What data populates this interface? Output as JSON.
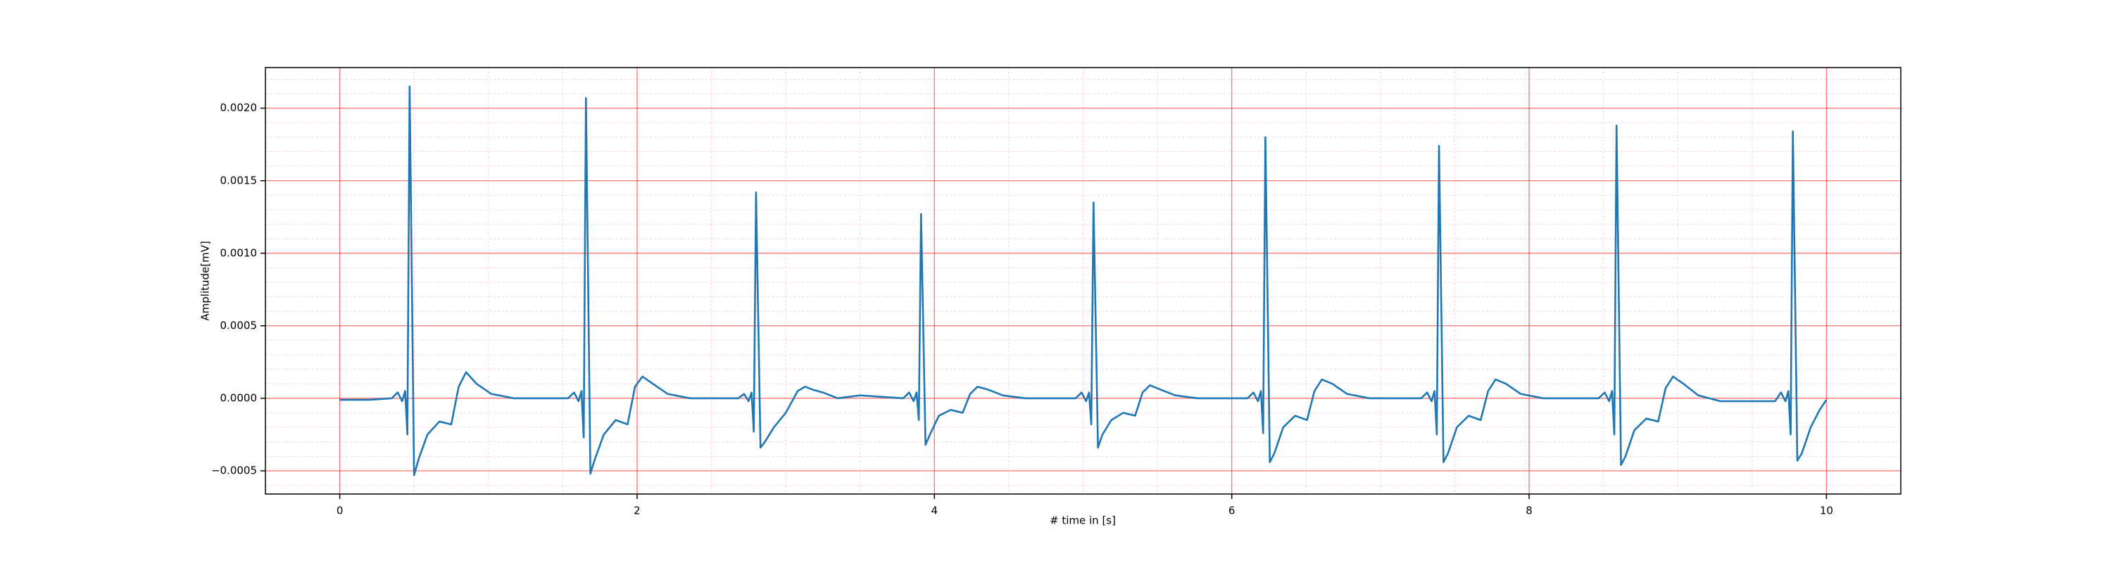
{
  "chart_data": {
    "type": "line",
    "xlabel": "# time in [s]",
    "ylabel": "Amplitude[mV]",
    "color": "#1f77b4",
    "x": [
      0,
      0.2,
      0.35,
      0.39,
      0.42,
      0.44,
      0.455,
      0.47,
      0.5,
      0.53,
      0.59,
      0.67,
      0.75,
      0.8,
      0.85,
      0.92,
      1.02,
      1.17,
      1.536,
      1.576,
      1.606,
      1.626,
      1.641,
      1.656,
      1.686,
      1.716,
      1.776,
      1.856,
      1.936,
      1.986,
      2.036,
      2.106,
      2.206,
      2.356,
      2.68,
      2.72,
      2.75,
      2.77,
      2.785,
      2.8,
      2.83,
      2.86,
      2.92,
      3.0,
      3.08,
      3.13,
      3.18,
      3.25,
      3.35,
      3.5,
      3.79,
      3.83,
      3.86,
      3.88,
      3.895,
      3.91,
      3.94,
      3.97,
      4.03,
      4.11,
      4.19,
      4.24,
      4.29,
      4.36,
      4.46,
      4.61,
      4.95,
      4.99,
      5.02,
      5.04,
      5.055,
      5.07,
      5.1,
      5.13,
      5.19,
      5.27,
      5.35,
      5.4,
      5.45,
      5.52,
      5.62,
      5.77,
      6.106,
      6.146,
      6.176,
      6.196,
      6.211,
      6.226,
      6.256,
      6.286,
      6.346,
      6.426,
      6.506,
      6.556,
      6.606,
      6.676,
      6.776,
      6.926,
      7.274,
      7.314,
      7.344,
      7.364,
      7.379,
      7.394,
      7.424,
      7.454,
      7.514,
      7.594,
      7.674,
      7.724,
      7.774,
      7.844,
      7.944,
      8.094,
      8.468,
      8.508,
      8.538,
      8.558,
      8.573,
      8.588,
      8.618,
      8.648,
      8.708,
      8.788,
      8.868,
      8.918,
      8.968,
      9.038,
      9.138,
      9.288,
      9.654,
      9.694,
      9.724,
      9.744,
      9.759,
      9.774,
      9.804,
      9.834,
      9.894,
      9.954,
      10.0
    ],
    "values": [
      -1e-05,
      -1e-05,
      0,
      4e-05,
      -2e-05,
      5e-05,
      -0.00025,
      0.00215,
      -0.00053,
      -0.00042,
      -0.00025,
      -0.00016,
      -0.00018,
      8e-05,
      0.00018,
      0.0001,
      3e-05,
      0,
      0,
      4e-05,
      -2e-05,
      5e-05,
      -0.00027,
      0.00207,
      -0.00052,
      -0.00042,
      -0.00025,
      -0.00015,
      -0.00018,
      8e-05,
      0.00015,
      0.0001,
      3e-05,
      0,
      0,
      3e-05,
      -2e-05,
      4e-05,
      -0.00023,
      0.00142,
      -0.00034,
      -0.0003,
      -0.0002,
      -0.0001,
      5e-05,
      8e-05,
      6e-05,
      4e-05,
      0,
      2e-05,
      0,
      4e-05,
      -2e-05,
      4e-05,
      -0.00015,
      0.00127,
      -0.00032,
      -0.00025,
      -0.00012,
      -8e-05,
      -0.0001,
      3e-05,
      8e-05,
      6e-05,
      2e-05,
      0,
      0,
      4e-05,
      -2e-05,
      4e-05,
      -0.00018,
      0.00135,
      -0.00034,
      -0.00025,
      -0.00015,
      -0.0001,
      -0.00012,
      4e-05,
      9e-05,
      6e-05,
      2e-05,
      0,
      0,
      4e-05,
      -2e-05,
      5e-05,
      -0.00024,
      0.0018,
      -0.00044,
      -0.00038,
      -0.0002,
      -0.00012,
      -0.00015,
      5e-05,
      0.00013,
      0.0001,
      3e-05,
      0,
      0,
      4e-05,
      -2e-05,
      5e-05,
      -0.00025,
      0.00174,
      -0.00044,
      -0.00038,
      -0.0002,
      -0.00012,
      -0.00015,
      5e-05,
      0.00013,
      0.0001,
      3e-05,
      0,
      0,
      4e-05,
      -2e-05,
      5e-05,
      -0.00025,
      0.00188,
      -0.00046,
      -0.0004,
      -0.00022,
      -0.00014,
      -0.00016,
      7e-05,
      0.00015,
      0.0001,
      2e-05,
      -2e-05,
      -2e-05,
      4e-05,
      -2e-05,
      5e-05,
      -0.00025,
      0.00184,
      -0.00043,
      -0.00038,
      -0.0002,
      -8e-05,
      -1e-05
    ],
    "xlim": [
      -0.5,
      10.5
    ],
    "xticks": [
      0,
      2,
      4,
      6,
      8,
      10
    ],
    "ylim": [
      -0.00066,
      0.00228
    ],
    "yticks": [
      {
        "value": -0.0005,
        "label": "−0.0005"
      },
      {
        "value": 0,
        "label": "0.0000"
      },
      {
        "value": 0.0005,
        "label": "0.0005"
      },
      {
        "value": 0.001,
        "label": "0.0010"
      },
      {
        "value": 0.0015,
        "label": "0.0015"
      },
      {
        "value": 0.002,
        "label": "0.0020"
      }
    ],
    "xminorticks": [
      -0.5,
      0.5,
      1,
      1.5,
      2.5,
      3,
      3.5,
      4.5,
      5,
      5.5,
      6.5,
      7,
      7.5,
      8.5,
      9,
      9.5,
      10.5
    ],
    "yminorticks": [
      -0.0006,
      -0.0004,
      -0.0003,
      -0.0002,
      -0.0001,
      0.0001,
      0.0002,
      0.0003,
      0.0004,
      0.0006,
      0.0007,
      0.0008,
      0.0009,
      0.0011,
      0.0012,
      0.0013,
      0.0014,
      0.0016,
      0.0017,
      0.0018,
      0.0019,
      0.0021,
      0.0022
    ],
    "grid": true,
    "major_grid_color": "#ff0000",
    "minor_grid_color": "#ffaacc"
  }
}
